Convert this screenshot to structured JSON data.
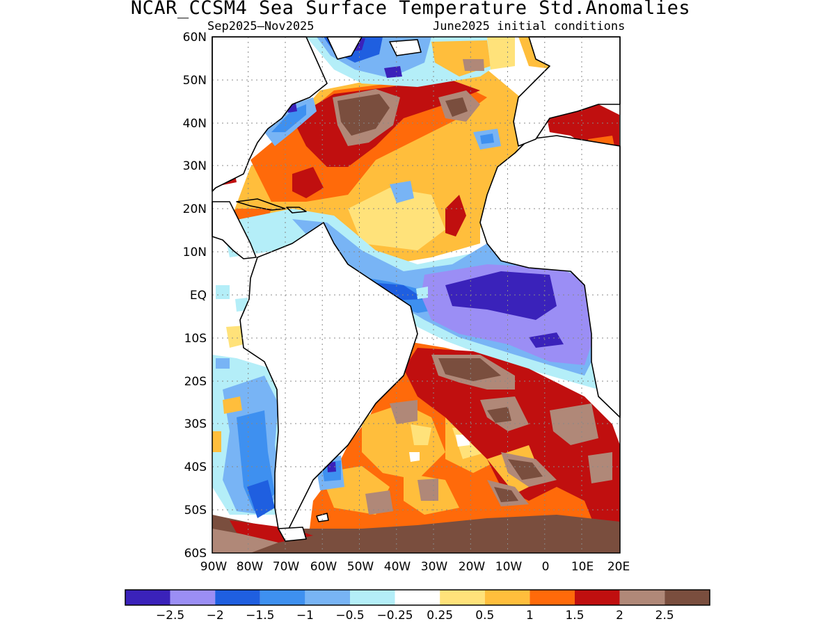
{
  "title": "NCAR_CCSM4 Sea Surface Temperature Std.Anomalies",
  "subtitle_left": "Sep2025–Nov2025",
  "subtitle_right": "June2025 initial conditions",
  "map": {
    "lat_labels": [
      "60N",
      "50N",
      "40N",
      "30N",
      "20N",
      "10N",
      "EQ",
      "10S",
      "20S",
      "30S",
      "40S",
      "50S",
      "60S"
    ],
    "lon_labels": [
      "90W",
      "80W",
      "70W",
      "60W",
      "50W",
      "40W",
      "30W",
      "20W",
      "10W",
      "0",
      "10E",
      "20E"
    ],
    "grid": true
  },
  "colorbar": {
    "colors": [
      "#3a22ba",
      "#9b8ef5",
      "#1f5fe0",
      "#3e90f0",
      "#78b4f5",
      "#b4eef8",
      "#ffffff",
      "#ffe27a",
      "#ffbe3c",
      "#ff6a0a",
      "#c00f0f",
      "#b08878",
      "#7a4e3e"
    ],
    "labels": [
      "−2.5",
      "−2",
      "−1.5",
      "−1",
      "−0.5",
      "−0.25",
      "0.25",
      "0.5",
      "1",
      "1.5",
      "2",
      "2.5"
    ]
  },
  "chart_data": {
    "type": "heatmap",
    "title": "NCAR_CCSM4 Sea Surface Temperature Std.Anomalies",
    "xlim": [
      "90W",
      "20E"
    ],
    "ylim": [
      "60S",
      "60N"
    ],
    "legend_levels": [
      -2.5,
      -2,
      -1.5,
      -1,
      -0.5,
      -0.25,
      0.25,
      0.5,
      1,
      1.5,
      2,
      2.5
    ],
    "grid": true
  }
}
